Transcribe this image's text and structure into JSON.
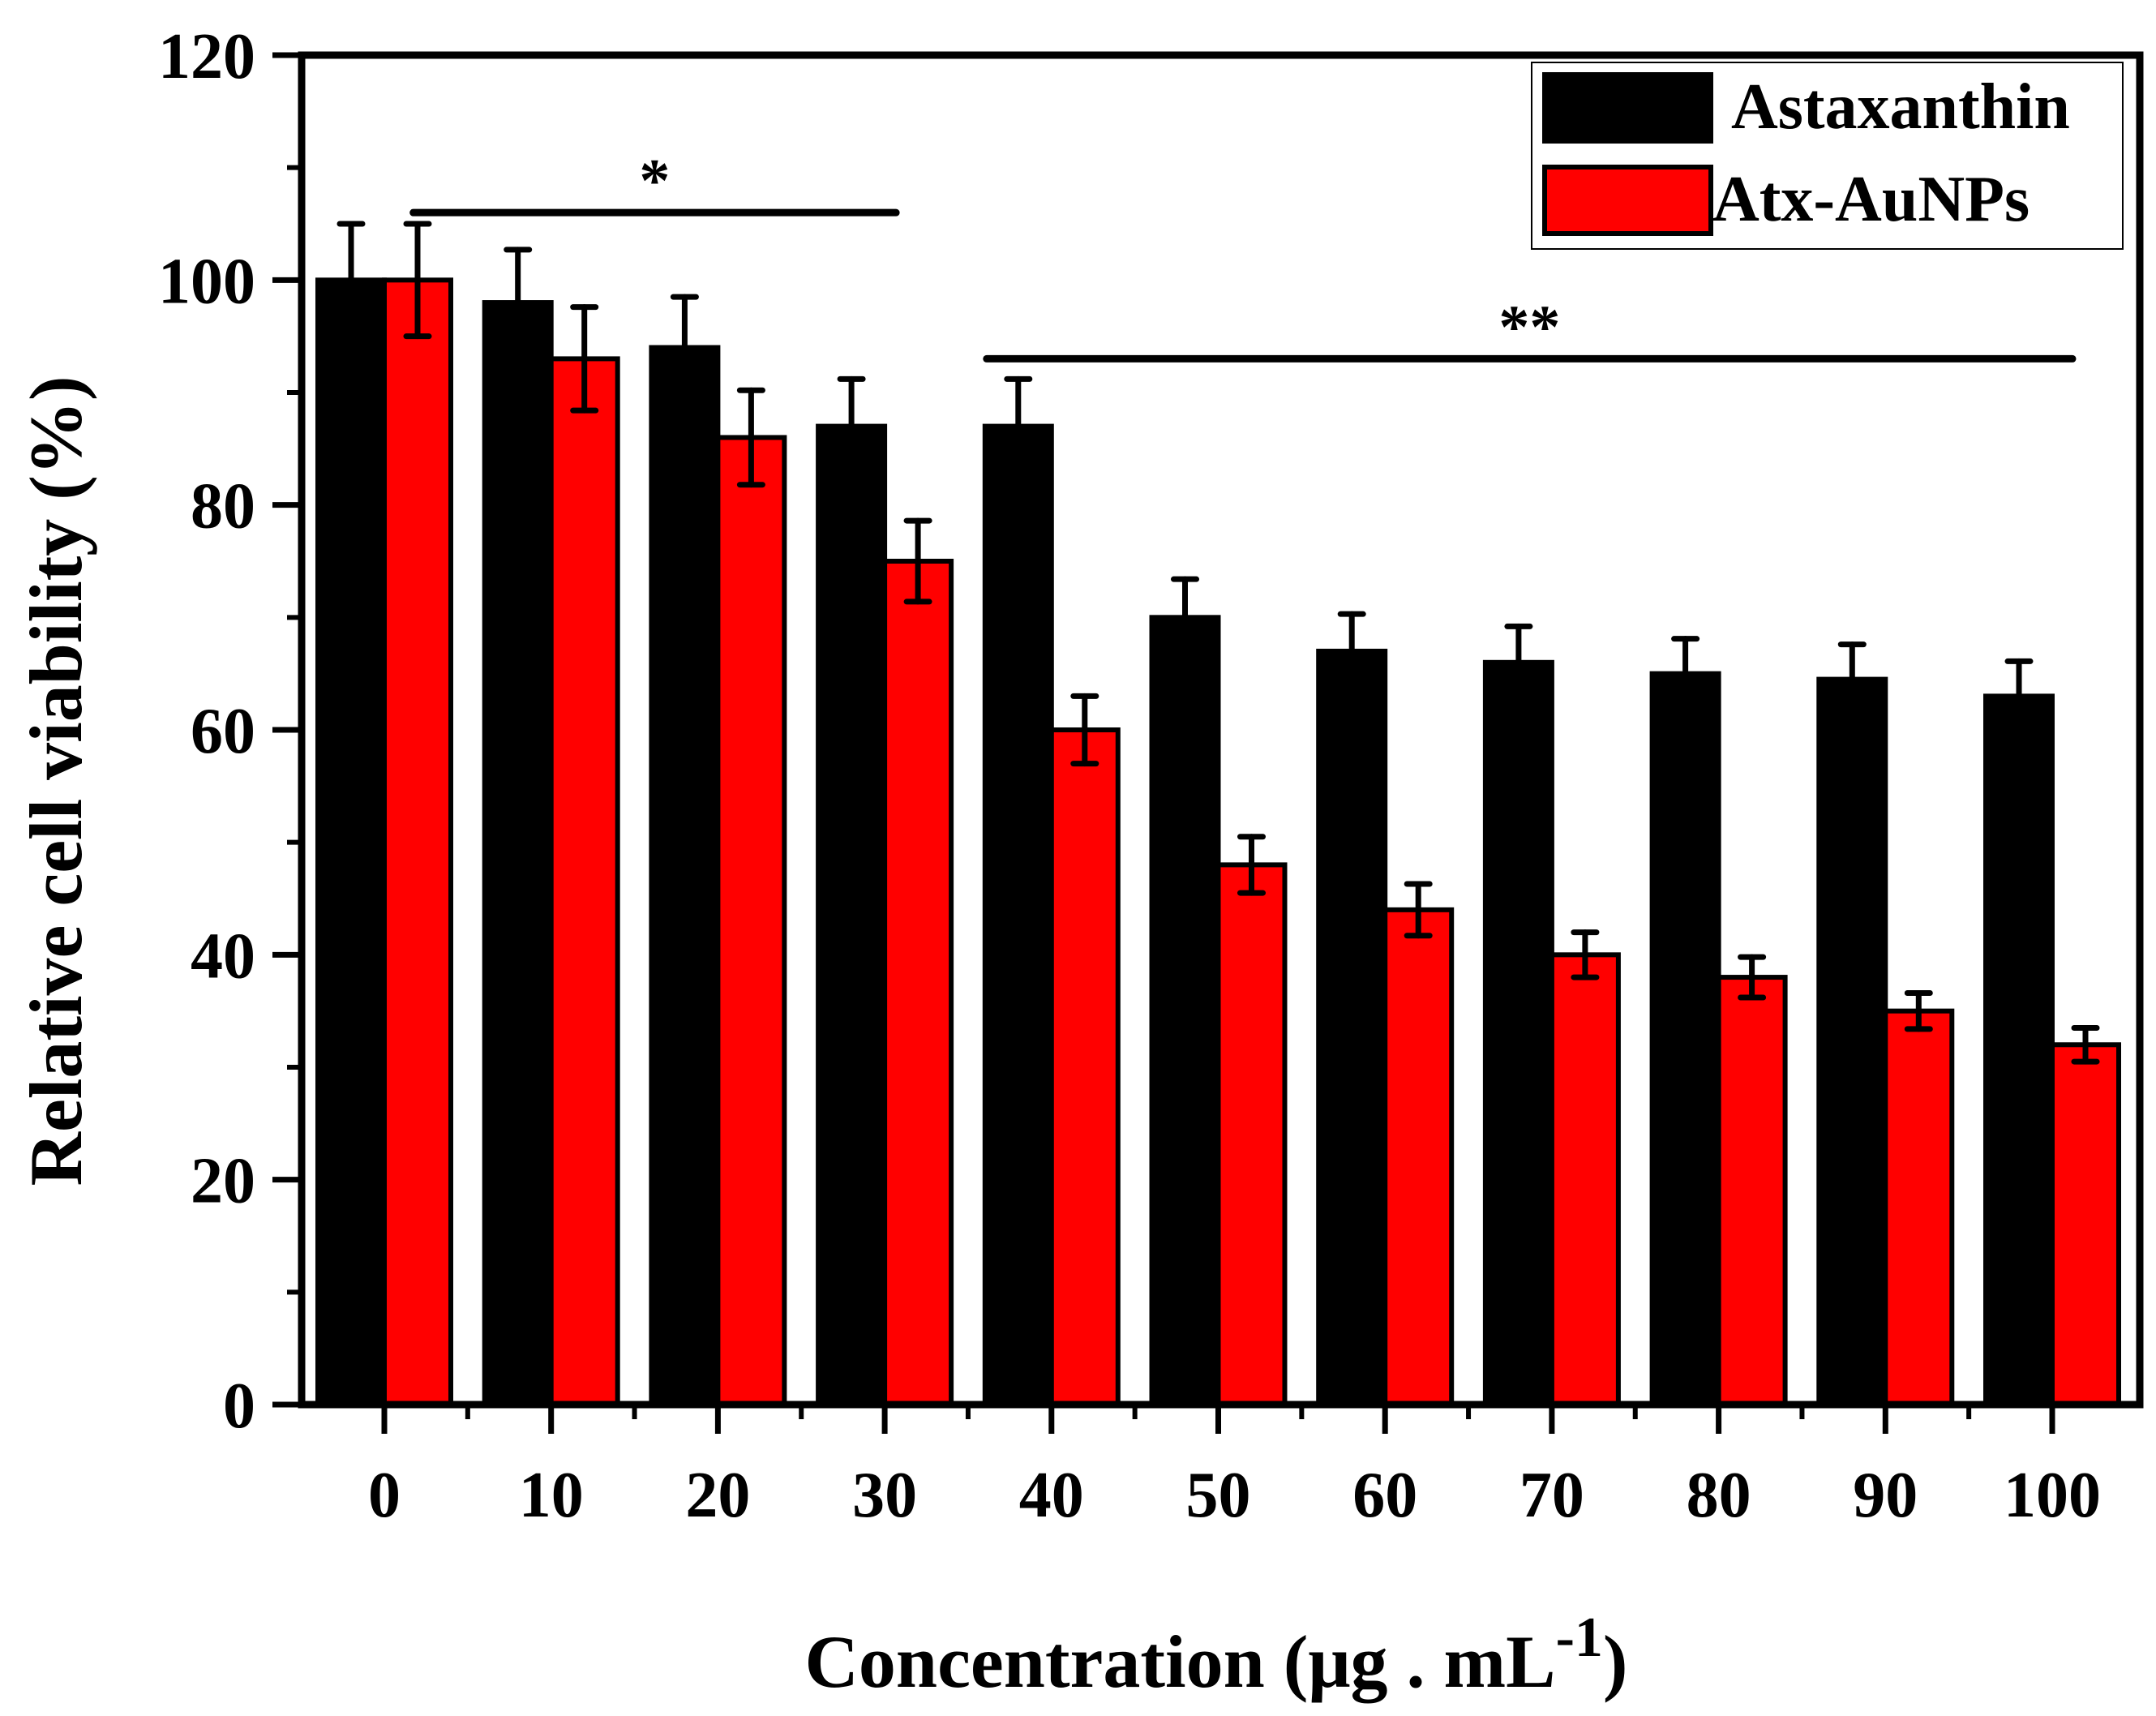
{
  "chart_data": {
    "type": "bar",
    "title": "",
    "xlabel": "Concentration (μg . mL",
    "xlabel_superscript": "-1",
    "xlabel_close": ")",
    "ylabel": "Relative cell viability (%)",
    "ylim": [
      0,
      120
    ],
    "yticks": [
      "0",
      "20",
      "40",
      "60",
      "80",
      "100",
      "120"
    ],
    "categories": [
      "0",
      "10",
      "20",
      "30",
      "40",
      "50",
      "60",
      "70",
      "80",
      "90",
      "100"
    ],
    "series": [
      {
        "name": "Astaxanthin",
        "color": "#000000",
        "values": [
          100,
          98,
          94,
          87,
          87,
          70,
          67,
          66,
          65,
          64.5,
          63
        ],
        "errors": [
          5,
          4.7,
          4.5,
          4.2,
          4.2,
          3.4,
          3.3,
          3.2,
          3.1,
          3.1,
          3.1
        ]
      },
      {
        "name": "Atx-AuNPs",
        "color": "#ff0000",
        "values": [
          100,
          93,
          86,
          75,
          60,
          48,
          44,
          40,
          38,
          35,
          32
        ],
        "errors": [
          5,
          4.6,
          4.2,
          3.6,
          3,
          2.5,
          2.3,
          2,
          1.8,
          1.6,
          1.5
        ]
      }
    ],
    "legend_position": "top-right",
    "grid": false,
    "annotations": [
      {
        "text": "*",
        "from_category": "10",
        "to_category": "30",
        "y": 106
      },
      {
        "text": "**",
        "from_category": "40",
        "to_category": "100",
        "y": 93
      }
    ]
  }
}
